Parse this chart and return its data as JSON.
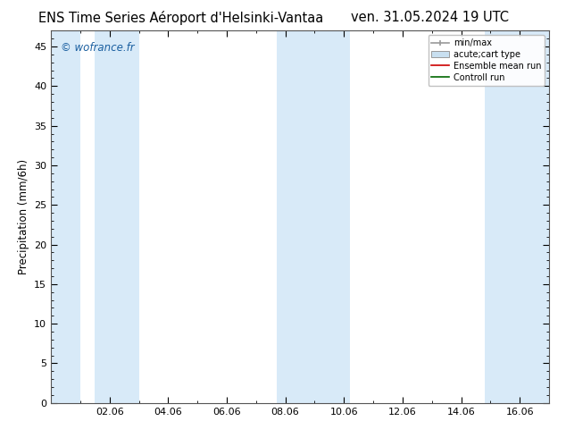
{
  "title_left": "ENS Time Series Aéroport d'Helsinki-Vantaa",
  "title_right": "ven. 31.05.2024 19 UTC",
  "ylabel": "Precipitation (mm/6h)",
  "watermark": "© wofrance.fr",
  "ylim": [
    0,
    47
  ],
  "yticks": [
    0,
    5,
    10,
    15,
    20,
    25,
    30,
    35,
    40,
    45
  ],
  "xtick_labels": [
    "02.06",
    "04.06",
    "06.06",
    "08.06",
    "10.06",
    "12.06",
    "14.06",
    "16.06"
  ],
  "xtick_positions": [
    2,
    4,
    6,
    8,
    10,
    12,
    14,
    16
  ],
  "xlim": [
    0,
    17
  ],
  "shaded_bands": [
    [
      0,
      1.0
    ],
    [
      1.5,
      3.0
    ],
    [
      7.7,
      10.2
    ],
    [
      14.8,
      17
    ]
  ],
  "band_color": "#d8eaf8",
  "background_color": "#ffffff",
  "plot_bg_color": "#ffffff",
  "title_fontsize": 10.5,
  "axis_fontsize": 8.5,
  "tick_fontsize": 8,
  "watermark_color": "#1a5fa0",
  "legend_fontsize": 7
}
